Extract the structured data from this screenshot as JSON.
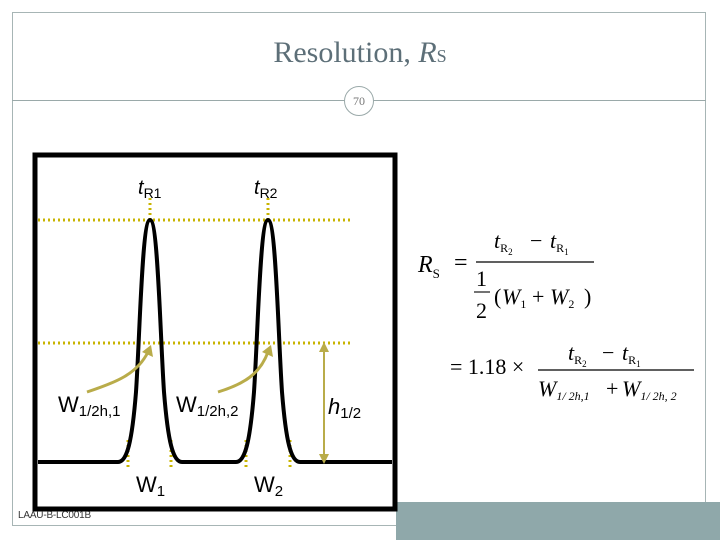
{
  "slide": {
    "title_main": "Resolution, ",
    "title_var": "R",
    "title_sub": "S",
    "page_number": "70",
    "footer_code": "LAAU-B-LC001B"
  },
  "figure": {
    "t1_label": "t",
    "t1_sub": "R1",
    "t2_label": "t",
    "t2_sub": "R2",
    "w_half1_label": "W",
    "w_half1_sub": "1/2h,1",
    "w_half2_label": "W",
    "w_half2_sub": "1/2h,2",
    "h_label": "h",
    "h_sub": "1/2",
    "w1_label": "W",
    "w1_sub": "1",
    "w2_label": "W",
    "w2_sub": "2",
    "arrow_color": "#b9ac4a",
    "dotted_color": "#c8b400"
  },
  "formula": {
    "rs_var": "R",
    "rs_sub": "S",
    "equals": "=",
    "num_tr2": "t",
    "num_tr2_sub": "R",
    "num_tr2_subsub": "2",
    "minus": "−",
    "num_tr1": "t",
    "num_tr1_sub": "R",
    "num_tr1_subsub": "1",
    "one": "1",
    "two": "2",
    "paren_open": "(",
    "w1": "W",
    "w1_sub": "1",
    "plus": "+",
    "w2": "W",
    "w2_sub": "2",
    "paren_close": ")",
    "coefficient": "= 1.18 ×",
    "den_w1": "W",
    "den_w1_sub": "1/ 2h,1",
    "den_w2": "W",
    "den_w2_sub": "1/ 2h, 2"
  }
}
